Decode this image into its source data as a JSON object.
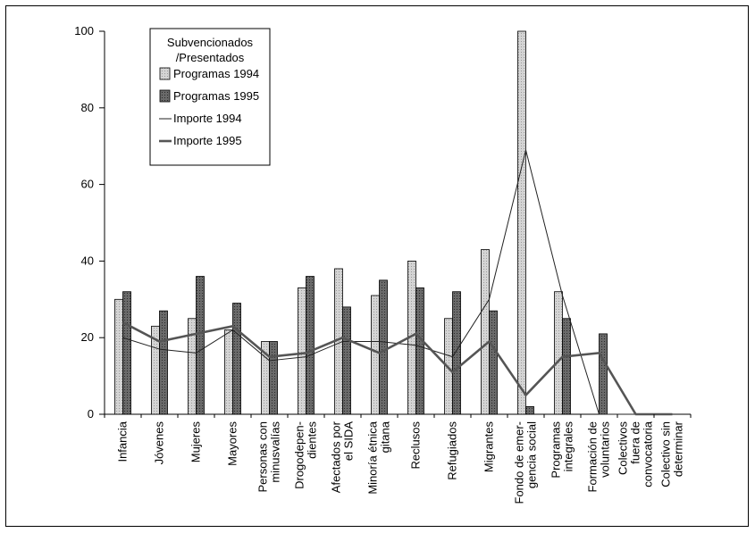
{
  "chart_data": {
    "type": "bar",
    "legend": {
      "title_lines": [
        "Subvencionados",
        "/Presentados"
      ],
      "placement": "top-left"
    },
    "categories": [
      [
        "Infancia"
      ],
      [
        "Jóvenes"
      ],
      [
        "Mujeres"
      ],
      [
        "Mayores"
      ],
      [
        "Personas con",
        "minusvalías"
      ],
      [
        "Drogodepen-",
        "dientes"
      ],
      [
        "Afectados por",
        "el SIDA"
      ],
      [
        "Minoría étnica",
        "gitana"
      ],
      [
        "Reclusos"
      ],
      [
        "Refugiados"
      ],
      [
        "Migrantes"
      ],
      [
        "Fondo de emer-",
        "gencia social"
      ],
      [
        "Programas",
        "integrales"
      ],
      [
        "Formación de",
        "voluntarios"
      ],
      [
        "Colectivos",
        "fuera de",
        "convocatoria"
      ],
      [
        "Colectivo sin",
        "determinar"
      ]
    ],
    "series": [
      {
        "name": "Programas 1994",
        "kind": "bar",
        "color": "#c8c8c8",
        "values": [
          30,
          23,
          25,
          22,
          19,
          33,
          38,
          31,
          40,
          25,
          43,
          100,
          32,
          0,
          0,
          0
        ]
      },
      {
        "name": "Programas 1995",
        "kind": "bar",
        "color": "#555555",
        "values": [
          32,
          27,
          36,
          29,
          19,
          36,
          28,
          35,
          33,
          32,
          27,
          2,
          25,
          21,
          0,
          0
        ]
      },
      {
        "name": "Importe 1994",
        "kind": "line",
        "color": "#222222",
        "values": [
          20,
          17,
          16,
          22,
          14,
          15,
          19,
          19,
          18,
          15,
          30,
          69,
          31,
          0,
          0,
          0
        ]
      },
      {
        "name": "Importe 1995",
        "kind": "line",
        "color": "#555555",
        "values": [
          24,
          19,
          21,
          23,
          15,
          16,
          20,
          16,
          21,
          11,
          19,
          5,
          15,
          16,
          0,
          0
        ]
      }
    ],
    "yticks": [
      0,
      20,
      40,
      60,
      80,
      100
    ],
    "ylim": [
      0,
      100
    ],
    "grid": false
  }
}
